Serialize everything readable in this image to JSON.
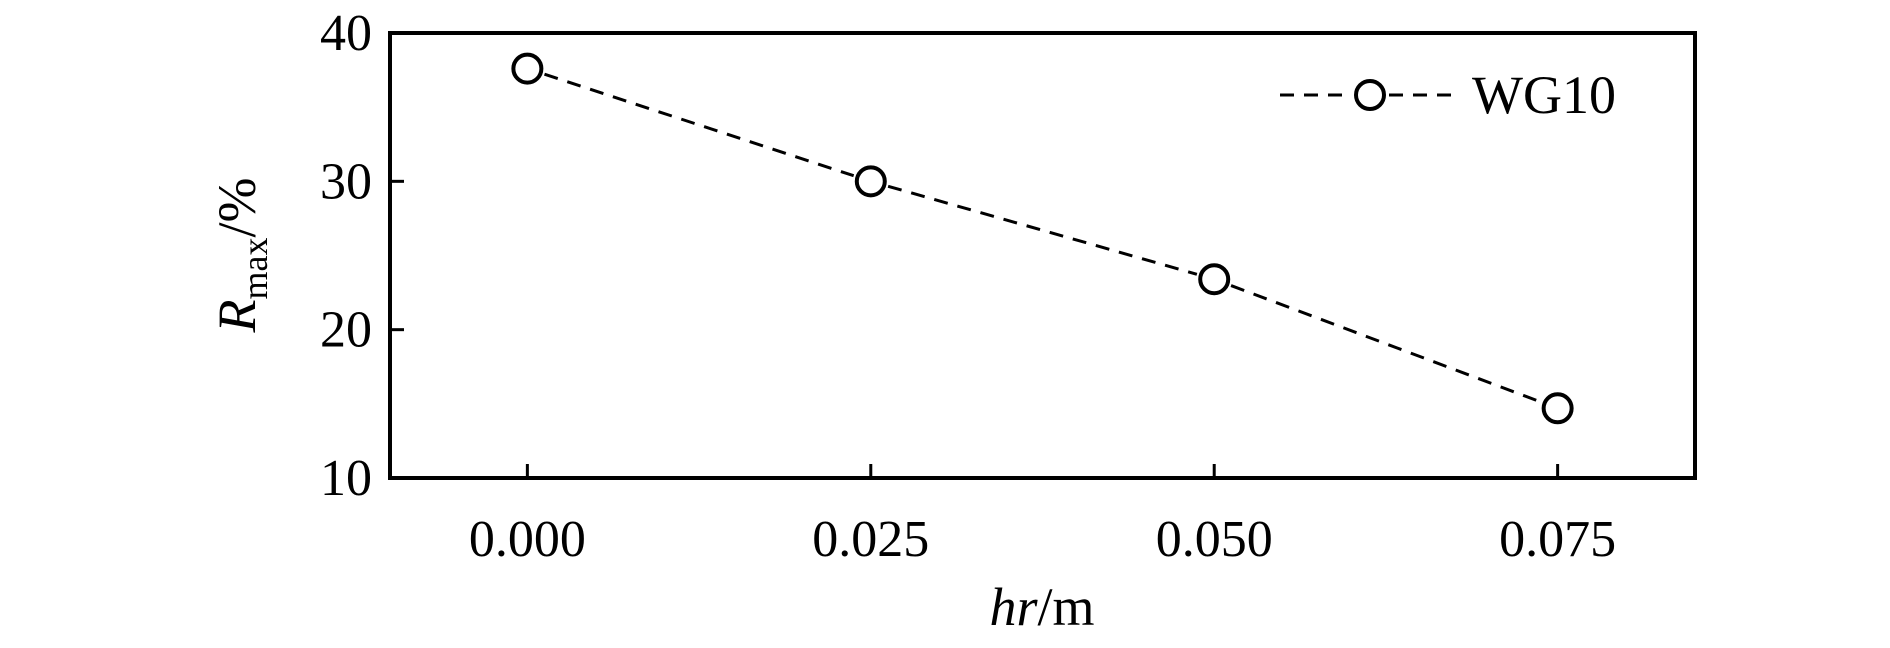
{
  "chart_data": {
    "type": "line",
    "title": "",
    "x_label_main": "hr",
    "x_label_unit": "/m",
    "y_label_main": "R",
    "y_label_sub": "max",
    "y_label_unit": "/%",
    "xlim": [
      -0.01,
      0.085
    ],
    "ylim": [
      10,
      40
    ],
    "x_ticks": [
      0.0,
      0.025,
      0.05,
      0.075
    ],
    "x_tick_labels": [
      "0.000",
      "0.025",
      "0.050",
      "0.075"
    ],
    "y_ticks": [
      10,
      20,
      30,
      40
    ],
    "y_tick_labels": [
      "10",
      "20",
      "30",
      "40"
    ],
    "grid": false,
    "legend_position": "top-right",
    "series": [
      {
        "name": "WG10",
        "line_style": "dashed",
        "marker": "open-circle",
        "color": "#000000",
        "x": [
          0.0,
          0.025,
          0.05,
          0.075
        ],
        "y": [
          37.6,
          30.0,
          23.4,
          14.7
        ]
      }
    ]
  }
}
